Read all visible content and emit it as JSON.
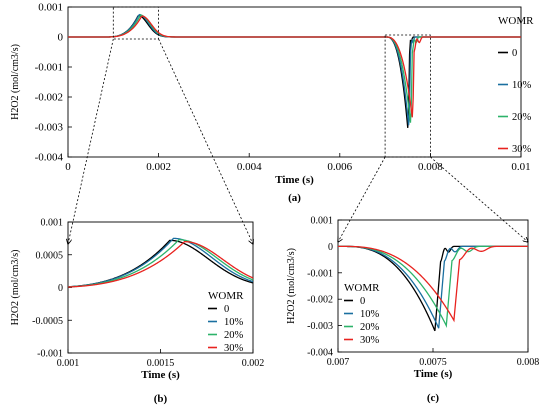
{
  "chart_data": [
    {
      "id": "a",
      "type": "line",
      "panel_label": "(a)",
      "xlabel": "Time (s)",
      "ylabel": "H2O2 (mol/cm3/s)",
      "xlim": [
        0,
        0.01
      ],
      "ylim": [
        -0.004,
        0.001
      ],
      "x_ticks": [
        "0",
        "0.002",
        "0.004",
        "0.006",
        "0.008",
        "0.01"
      ],
      "y_ticks": [
        "0.001",
        "0",
        "-0.001",
        "-0.002",
        "-0.003",
        "-0.004"
      ],
      "legend_title": "WOMR",
      "series": [
        {
          "name": "0",
          "color": "#000000",
          "peak_x": 0.00155,
          "peak_y": 0.00072,
          "dip_x": 0.00751,
          "dip_y": -0.0032
        },
        {
          "name": "10%",
          "color": "#1a6fa0",
          "peak_x": 0.00157,
          "peak_y": 0.00075,
          "dip_x": 0.00753,
          "dip_y": -0.0031
        },
        {
          "name": "20%",
          "color": "#2db36a",
          "peak_x": 0.0016,
          "peak_y": 0.00073,
          "dip_x": 0.00757,
          "dip_y": -0.003
        },
        {
          "name": "30%",
          "color": "#e8231f",
          "peak_x": 0.00163,
          "peak_y": 0.0007,
          "dip_x": 0.00761,
          "dip_y": -0.0028
        }
      ]
    },
    {
      "id": "b",
      "type": "line",
      "panel_label": "(b)",
      "xlabel": "Time (s)",
      "ylabel": "H2O2 (mol/cm3/s)",
      "xlim": [
        0.001,
        0.002
      ],
      "ylim": [
        -0.001,
        0.001
      ],
      "x_ticks": [
        "0.001",
        "0.0015",
        "0.002"
      ],
      "y_ticks": [
        "0.001",
        "0.0005",
        "0",
        "-0.0005",
        "-0.001"
      ],
      "legend_title": "WOMR",
      "series": [
        {
          "name": "0",
          "color": "#000000",
          "peak_x": 0.00155,
          "peak_y": 0.00072
        },
        {
          "name": "10%",
          "color": "#1a6fa0",
          "peak_x": 0.00157,
          "peak_y": 0.00075
        },
        {
          "name": "20%",
          "color": "#2db36a",
          "peak_x": 0.0016,
          "peak_y": 0.00073
        },
        {
          "name": "30%",
          "color": "#e8231f",
          "peak_x": 0.00163,
          "peak_y": 0.0007
        }
      ]
    },
    {
      "id": "c",
      "type": "line",
      "panel_label": "(c)",
      "xlabel": "Time (s)",
      "ylabel": "H2O2 (mol/cm3/s)",
      "xlim": [
        0.007,
        0.008
      ],
      "ylim": [
        -0.004,
        0.001
      ],
      "x_ticks": [
        "0.007",
        "0.0075",
        "0.008"
      ],
      "y_ticks": [
        "0.001",
        "0",
        "-0.001",
        "-0.002",
        "-0.003",
        "-0.004"
      ],
      "legend_title": "WOMR",
      "series": [
        {
          "name": "0",
          "color": "#000000",
          "dip_x": 0.00751,
          "dip_y": -0.0032
        },
        {
          "name": "10%",
          "color": "#1a6fa0",
          "dip_x": 0.00753,
          "dip_y": -0.0031
        },
        {
          "name": "20%",
          "color": "#2db36a",
          "dip_x": 0.00757,
          "dip_y": -0.003
        },
        {
          "name": "30%",
          "color": "#e8231f",
          "dip_x": 0.00761,
          "dip_y": -0.0028
        }
      ]
    }
  ]
}
